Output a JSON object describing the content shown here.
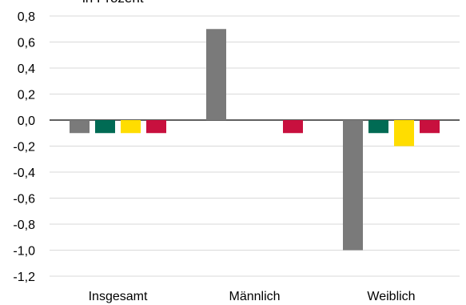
{
  "chart_data": {
    "type": "bar",
    "ylabel": "in Prozent",
    "categories": [
      "Insgesamt",
      "Männlich",
      "Weiblich"
    ],
    "series": [
      {
        "color": "#7a7a7a",
        "values": [
          -0.1,
          0.7,
          -1.0
        ]
      },
      {
        "color": "#006b54",
        "values": [
          -0.1,
          0.0,
          -0.1
        ]
      },
      {
        "color": "#ffdd00",
        "values": [
          -0.1,
          0.0,
          -0.2
        ]
      },
      {
        "color": "#c8103e",
        "values": [
          -0.1,
          -0.1,
          -0.1
        ]
      }
    ],
    "yticks": [
      "0,8",
      "0,6",
      "0,4",
      "0,2",
      "0,0",
      "-0,2",
      "-0,4",
      "-0,6",
      "-0,8",
      "-1,0",
      "-1,2"
    ],
    "ylim": [
      -1.2,
      0.8
    ],
    "grid": true
  }
}
